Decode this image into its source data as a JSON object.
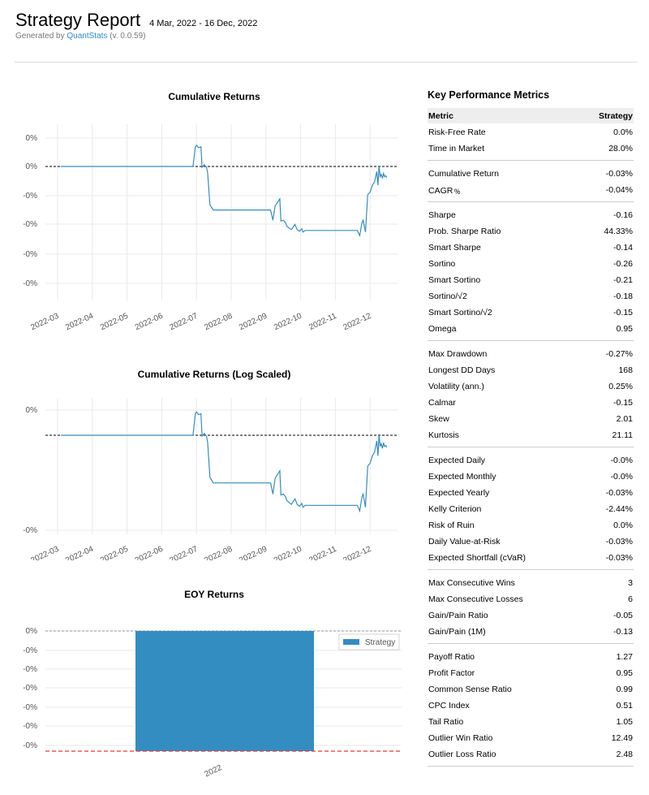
{
  "header": {
    "title": "Strategy Report",
    "date_range": "4 Mar, 2022 - 16 Dec, 2022",
    "generated_prefix": "Generated by",
    "generated_link": "QuantStats",
    "generated_version": "(v. 0.0.59)"
  },
  "colors": {
    "line": "#348dc1",
    "bar": "#348dc1",
    "mean_line": "#e53935",
    "grid": "#e9e9e9"
  },
  "chart_data": [
    {
      "type": "line",
      "title": "Cumulative Returns",
      "y_tick_labels": [
        "0%",
        "0%",
        "-0%",
        "-0%",
        "-0%",
        "-0%"
      ],
      "x_tick_labels": [
        "2022-03",
        "2022-04",
        "2022-05",
        "2022-06",
        "2022-07",
        "2022-08",
        "2022-09",
        "2022-10",
        "2022-11",
        "2022-12"
      ],
      "baseline": "0%",
      "series": [
        {
          "x": [
            "2022-03-04",
            "2022-06-28",
            "2022-06-30",
            "2022-07-01",
            "2022-07-03",
            "2022-07-05",
            "2022-07-06",
            "2022-07-08",
            "2022-07-10",
            "2022-07-11",
            "2022-07-13",
            "2022-07-16",
            "2022-09-05",
            "2022-09-07",
            "2022-09-09",
            "2022-09-11",
            "2022-09-13",
            "2022-09-14",
            "2022-09-16",
            "2022-09-18",
            "2022-09-19",
            "2022-09-21",
            "2022-09-23",
            "2022-09-26",
            "2022-09-28",
            "2022-09-30",
            "2022-10-02",
            "2022-10-03",
            "2022-10-05",
            "2022-10-07",
            "2022-11-20",
            "2022-11-22",
            "2022-11-24",
            "2022-11-25",
            "2022-11-27",
            "2022-11-29",
            "2022-12-01",
            "2022-12-03",
            "2022-12-05",
            "2022-12-07",
            "2022-12-08",
            "2022-12-09",
            "2022-12-10",
            "2022-12-11",
            "2022-12-12",
            "2022-12-13",
            "2022-12-14",
            "2022-12-15",
            "2022-12-16"
          ],
          "y": [
            0.0,
            0.0,
            0.0115,
            0.0125,
            0.011,
            0.0115,
            -0.0005,
            0.001,
            -0.0005,
            -0.004,
            -0.0225,
            -0.0255,
            -0.0255,
            -0.0315,
            -0.023,
            -0.021,
            -0.019,
            -0.032,
            -0.0315,
            -0.033,
            -0.035,
            -0.036,
            -0.037,
            -0.034,
            -0.037,
            -0.038,
            -0.0365,
            -0.0385,
            -0.0375,
            -0.0375,
            -0.0375,
            -0.0405,
            -0.033,
            -0.0315,
            -0.0385,
            -0.0165,
            -0.015,
            -0.011,
            -0.009,
            -0.003,
            -0.011,
            0.0005,
            -0.006,
            -0.0045,
            -0.007,
            -0.004,
            -0.006,
            -0.0055,
            -0.0065
          ]
        }
      ]
    },
    {
      "type": "line",
      "title": "Cumulative Returns (Log Scaled)",
      "y_tick_labels": [
        "0%",
        "-0%"
      ],
      "x_tick_labels": [
        "2022-03",
        "2022-04",
        "2022-05",
        "2022-06",
        "2022-07",
        "2022-08",
        "2022-09",
        "2022-10",
        "2022-11",
        "2022-12"
      ],
      "log_scale": true,
      "baseline": "0%"
    },
    {
      "type": "bar",
      "title": "EOY Returns",
      "categories": [
        "2022"
      ],
      "series": [
        {
          "name": "Strategy",
          "values": [
            -0.03
          ]
        }
      ],
      "y_tick_labels": [
        "0%",
        "-0%",
        "-0%",
        "-0%",
        "-0%",
        "-0%",
        "-0%"
      ],
      "mean_line": -0.03,
      "legend": "top-right"
    }
  ],
  "metrics": {
    "title": "Key Performance Metrics",
    "col_metric": "Metric",
    "col_strategy": "Strategy",
    "groups": [
      [
        [
          "Risk-Free Rate",
          "0.0%"
        ],
        [
          "Time in Market",
          "28.0%"
        ]
      ],
      [
        [
          "Cumulative Return",
          "-0.03%"
        ],
        [
          "CAGR﹪",
          "-0.04%"
        ]
      ],
      [
        [
          "Sharpe",
          "-0.16"
        ],
        [
          "Prob. Sharpe Ratio",
          "44.33%"
        ],
        [
          "Smart Sharpe",
          "-0.14"
        ],
        [
          "Sortino",
          "-0.26"
        ],
        [
          "Smart Sortino",
          "-0.21"
        ],
        [
          "Sortino/√2",
          "-0.18"
        ],
        [
          "Smart Sortino/√2",
          "-0.15"
        ],
        [
          "Omega",
          "0.95"
        ]
      ],
      [
        [
          "Max Drawdown",
          "-0.27%"
        ],
        [
          "Longest DD Days",
          "168"
        ],
        [
          "Volatility (ann.)",
          "0.25%"
        ],
        [
          "Calmar",
          "-0.15"
        ],
        [
          "Skew",
          "2.01"
        ],
        [
          "Kurtosis",
          "21.11"
        ]
      ],
      [
        [
          "Expected Daily",
          "-0.0%"
        ],
        [
          "Expected Monthly",
          "-0.0%"
        ],
        [
          "Expected Yearly",
          "-0.03%"
        ],
        [
          "Kelly Criterion",
          "-2.44%"
        ],
        [
          "Risk of Ruin",
          "0.0%"
        ],
        [
          "Daily Value-at-Risk",
          "-0.03%"
        ],
        [
          "Expected Shortfall (cVaR)",
          "-0.03%"
        ]
      ],
      [
        [
          "Max Consecutive Wins",
          "3"
        ],
        [
          "Max Consecutive Losses",
          "6"
        ],
        [
          "Gain/Pain Ratio",
          "-0.05"
        ],
        [
          "Gain/Pain (1M)",
          "-0.13"
        ]
      ],
      [
        [
          "Payoff Ratio",
          "1.27"
        ],
        [
          "Profit Factor",
          "0.95"
        ],
        [
          "Common Sense Ratio",
          "0.99"
        ],
        [
          "CPC Index",
          "0.51"
        ],
        [
          "Tail Ratio",
          "1.05"
        ],
        [
          "Outlier Win Ratio",
          "12.49"
        ],
        [
          "Outlier Loss Ratio",
          "2.48"
        ]
      ]
    ]
  }
}
